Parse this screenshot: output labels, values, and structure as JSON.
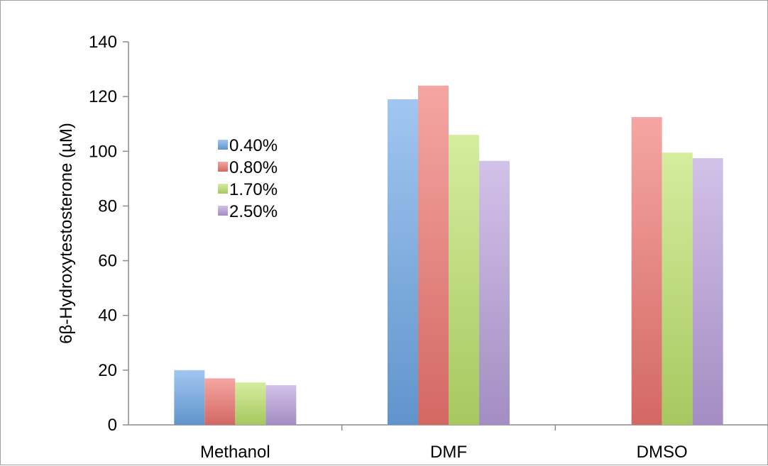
{
  "chart_data": {
    "type": "bar",
    "categories": [
      "Methanol",
      "DMF",
      "DMSO"
    ],
    "ylabel": "6β-Hydroxytestosterone (µM)",
    "ylim": [
      0,
      140
    ],
    "yticks": [
      0,
      20,
      40,
      60,
      80,
      100,
      120,
      140
    ],
    "grid": false,
    "legend_position": "upper-left",
    "series": [
      {
        "name": "0.40%",
        "values": [
          20,
          119,
          null
        ],
        "color": "#6ea8e8"
      },
      {
        "name": "0.80%",
        "values": [
          17,
          124,
          112.5
        ],
        "color": "#f07670"
      },
      {
        "name": "1.70%",
        "values": [
          15.5,
          106,
          99.5
        ],
        "color": "#bde36c"
      },
      {
        "name": "2.50%",
        "values": [
          14.5,
          96.5,
          97.5
        ],
        "color": "#b9a0dc"
      }
    ]
  }
}
